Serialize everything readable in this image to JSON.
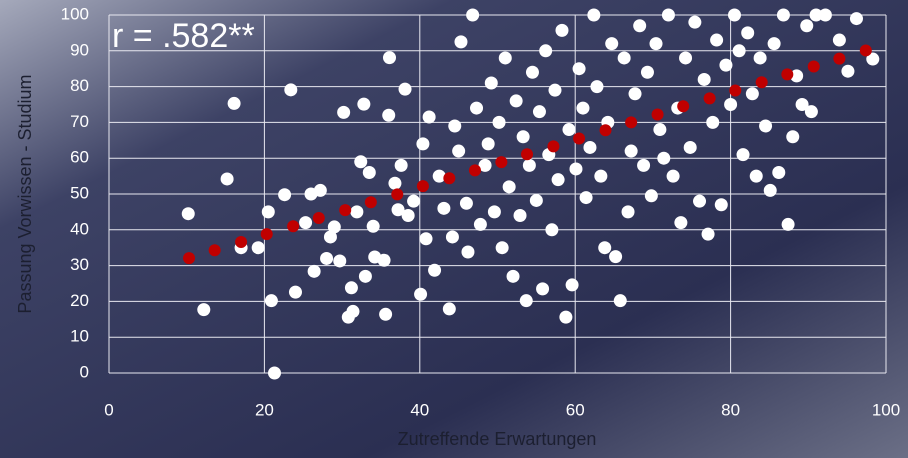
{
  "chart_data": {
    "type": "scatter",
    "annotation": "r = .582**",
    "xlabel": "Zutreffende Erwartungen",
    "ylabel": "Passung Vorwissen - Studium",
    "xlim": [
      0,
      100
    ],
    "ylim": [
      0,
      100
    ],
    "xticks": [
      0,
      20,
      40,
      60,
      80,
      100
    ],
    "yticks": [
      0,
      10,
      20,
      30,
      40,
      50,
      60,
      70,
      80,
      90,
      100
    ],
    "grid": true,
    "series": [
      {
        "color": "#ffffff",
        "x": [
          10.2,
          12.2,
          15.2,
          16.1,
          17,
          21.3,
          20.9,
          23.4,
          24,
          22.6,
          25.3,
          26.4,
          27.2,
          28,
          28.5,
          29,
          29.7,
          30.2,
          30.8,
          31.4,
          31.2,
          31.9,
          32.4,
          32.8,
          33.5,
          34,
          34.2,
          35.4,
          35.6,
          36.1,
          36.8,
          37.2,
          37.6,
          38.1,
          38.5,
          39.2,
          40.1,
          40.4,
          40.8,
          41.2,
          41.9,
          42.5,
          43.1,
          43.8,
          44.2,
          44.5,
          45,
          45.3,
          46,
          46.2,
          46.8,
          47.3,
          47.8,
          48.4,
          48.8,
          49.2,
          49.6,
          50.2,
          50.6,
          51,
          51.5,
          52,
          52.4,
          52.9,
          53.3,
          53.7,
          54.1,
          54.5,
          55,
          55.4,
          55.8,
          56.2,
          56.6,
          57,
          57.4,
          57.8,
          58.3,
          58.8,
          59.2,
          59.6,
          60.1,
          60.5,
          61,
          61.4,
          61.9,
          62.4,
          62.8,
          63.3,
          63.8,
          64.2,
          64.7,
          65.2,
          65.8,
          66.3,
          66.8,
          67.2,
          67.7,
          68.3,
          68.8,
          69.3,
          69.8,
          70.4,
          70.9,
          71.4,
          72,
          72.6,
          73.2,
          73.6,
          74.2,
          74.8,
          75.4,
          76,
          76.6,
          77.1,
          77.7,
          78.2,
          78.8,
          79.4,
          80,
          80.5,
          81.1,
          81.6,
          82.2,
          82.8,
          83.3,
          83.8,
          84.5,
          85.1,
          85.6,
          86.2,
          86.8,
          87.4,
          88,
          88.5,
          89.2,
          89.8,
          90.4,
          91,
          92.2,
          94,
          95.1,
          96.2,
          98.3,
          20.5,
          19.2,
          26,
          33,
          36
        ],
        "values": [
          44.5,
          17.7,
          54.2,
          75.3,
          35,
          0,
          20.2,
          79.1,
          22.6,
          49.8,
          42,
          28.4,
          51,
          32,
          38,
          40.8,
          31.3,
          72.8,
          15.6,
          17.2,
          23.8,
          45,
          59,
          75.1,
          56,
          41,
          32.4,
          31.5,
          16.4,
          88.1,
          53,
          45.6,
          58,
          79.3,
          44,
          48,
          22,
          64,
          37.5,
          71.5,
          28.7,
          55,
          46,
          17.9,
          38,
          69,
          62,
          92.5,
          47.4,
          33.8,
          100,
          74,
          41.5,
          58,
          64,
          81,
          45,
          70,
          35,
          88,
          52,
          27,
          76,
          44,
          66,
          20.2,
          58,
          84,
          48.2,
          73,
          23.5,
          90,
          61,
          40,
          79,
          54,
          95.7,
          15.6,
          68,
          24.6,
          57,
          85,
          74,
          49,
          63,
          100,
          80,
          55,
          35,
          70,
          92,
          32.5,
          20.2,
          88,
          45,
          62,
          78,
          97,
          58,
          84,
          49.5,
          92,
          68,
          60,
          100,
          55,
          74,
          42,
          88,
          63,
          98,
          48,
          82,
          38.8,
          70,
          93,
          47,
          86,
          75,
          100,
          90,
          61,
          95,
          78,
          55,
          88,
          69,
          51,
          92,
          56,
          100,
          41.5,
          66,
          83,
          75,
          97,
          73,
          100,
          100,
          93,
          84.3,
          99,
          87.7,
          45,
          35,
          50,
          27,
          72
        ]
      },
      {
        "color": "#c00000",
        "x": [
          10.3,
          13.6,
          17.0,
          20.3,
          23.7,
          27.0,
          30.4,
          33.7,
          37.1,
          40.4,
          43.8,
          47.1,
          50.5,
          53.8,
          57.2,
          60.5,
          63.9,
          67.2,
          70.6,
          73.9,
          77.3,
          80.6,
          84.0,
          87.3,
          90.7,
          94.0,
          97.4
        ],
        "values": [
          32.1,
          34.3,
          36.6,
          38.8,
          41.0,
          43.3,
          45.5,
          47.7,
          49.9,
          52.2,
          54.4,
          56.6,
          58.9,
          61.1,
          63.3,
          65.5,
          67.8,
          70.0,
          72.2,
          74.5,
          76.7,
          78.9,
          81.2,
          83.4,
          85.6,
          87.8,
          90.1
        ]
      }
    ]
  }
}
